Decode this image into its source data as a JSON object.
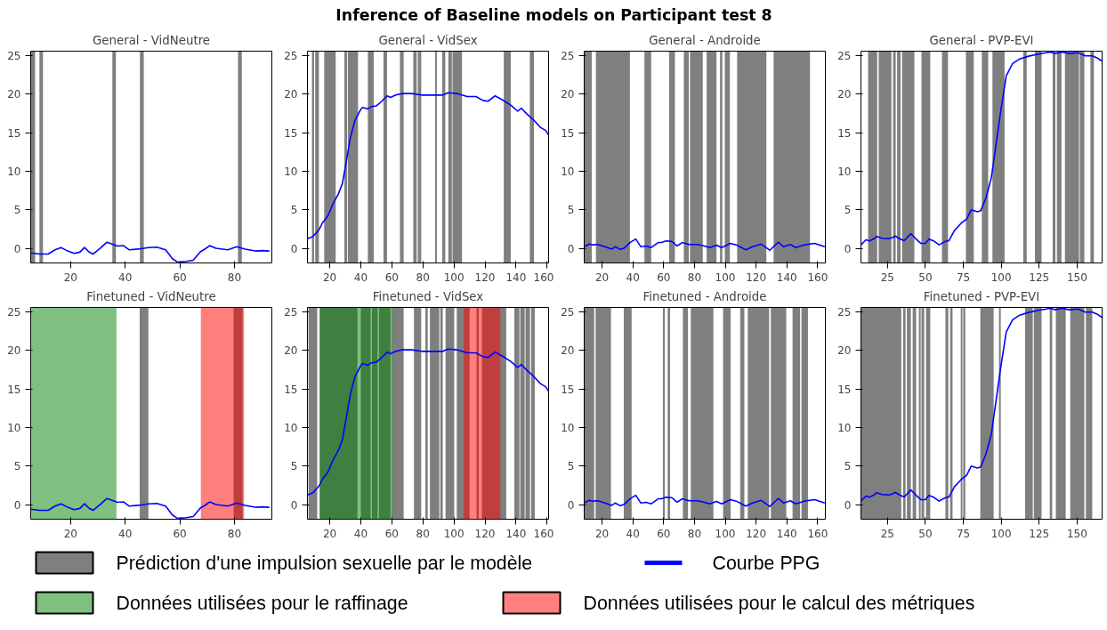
{
  "chart_data": [
    {
      "type": "line",
      "title": "General - VidNeutre",
      "annotations": [
        "Inference of Baseline models on Participant test 8"
      ],
      "xlim": [
        5.4,
        93.7
      ],
      "ylim": [
        -1.9,
        25.6
      ],
      "xticks": [
        20,
        40,
        60,
        80
      ],
      "yticks": [
        0,
        5,
        10,
        15,
        20,
        25
      ],
      "series": [
        {
          "color": "#0000ff",
          "x": [
            5.5,
            8.6,
            11.8,
            14.3,
            16.5,
            18.7,
            21.3,
            23.4,
            25.1,
            26.7,
            28.2,
            30.8,
            33.3,
            35.2,
            37.1,
            39.4,
            41.5,
            44.7,
            48.5,
            51.6,
            54.8,
            57.3,
            59.2,
            62.4,
            64.9,
            67.5,
            69.4,
            70.9,
            73.2,
            77.6,
            80.8,
            83.9,
            87.7,
            90.3,
            92.8
          ],
          "values": [
            -0.6,
            -0.75,
            -0.75,
            -0.2,
            0.1,
            -0.3,
            -0.65,
            -0.5,
            0.1,
            -0.45,
            -0.75,
            0,
            0.8,
            0.55,
            0.3,
            0.35,
            -0.2,
            -0.1,
            0.1,
            0.15,
            -0.2,
            -1.35,
            -1.8,
            -1.7,
            -1.55,
            -0.45,
            -0.05,
            0.35,
            0,
            -0.2,
            0.2,
            -0.1,
            -0.35,
            -0.3,
            -0.35
          ]
        }
      ],
      "bands": [
        {
          "axis": "x",
          "from": 5.4,
          "to": 7.0,
          "color": "#000000"
        },
        {
          "axis": "x",
          "from": 8.6,
          "to": 9.9,
          "color": "#000000"
        },
        {
          "axis": "x",
          "from": 35.3,
          "to": 36.6,
          "color": "#000000"
        },
        {
          "axis": "x",
          "from": 45.4,
          "to": 46.8,
          "color": "#000000"
        },
        {
          "axis": "x",
          "from": 81.3,
          "to": 82.7,
          "color": "#000000"
        }
      ]
    },
    {
      "type": "line",
      "title": "General - VidSex",
      "xlim": [
        5.6,
        161
      ],
      "ylim": [
        -1.9,
        25.6
      ],
      "xticks": [
        20,
        40,
        60,
        80,
        100,
        120,
        140,
        160
      ],
      "yticks": [
        0,
        5,
        10,
        15,
        20,
        25
      ],
      "series": [
        {
          "color": "#0000ff",
          "x": [
            5.6,
            9.2,
            13.0,
            15.3,
            18.7,
            22.0,
            25.4,
            28.1,
            31.0,
            33.3,
            36.2,
            40.0,
            41.1,
            44.5,
            46.7,
            50.1,
            53.5,
            56.9,
            59.1,
            62.5,
            67.0,
            72.6,
            79.3,
            86.1,
            92.8,
            96.2,
            101.8,
            108.5,
            114.2,
            118.7,
            122.0,
            126.5,
            131.0,
            136.6,
            141.1,
            143.4,
            146.7,
            151.2,
            155.7,
            159.1,
            161
          ],
          "values": [
            1.25,
            1.55,
            2.4,
            3.3,
            4.2,
            5.75,
            7.0,
            8.4,
            11.7,
            14.4,
            16.6,
            18.05,
            18.3,
            18.1,
            18.4,
            18.5,
            19.1,
            19.8,
            19.6,
            19.9,
            20.1,
            20.1,
            19.9,
            19.9,
            19.9,
            20.2,
            20.1,
            19.7,
            19.7,
            19.2,
            19.1,
            19.8,
            19.3,
            18.6,
            17.8,
            18.2,
            17.5,
            16.7,
            15.7,
            15.3,
            14.7
          ]
        }
      ],
      "bands": [
        {
          "axis": "x",
          "from": 8.5,
          "to": 9.9,
          "color": "#000000"
        },
        {
          "axis": "x",
          "from": 10.6,
          "to": 13.0,
          "color": "#000000"
        },
        {
          "axis": "x",
          "from": 16.4,
          "to": 23.8,
          "color": "#000000"
        },
        {
          "axis": "x",
          "from": 29.4,
          "to": 31.2,
          "color": "#000000"
        },
        {
          "axis": "x",
          "from": 31.7,
          "to": 38.2,
          "color": "#000000"
        },
        {
          "axis": "x",
          "from": 44.5,
          "to": 48.3,
          "color": "#000000"
        },
        {
          "axis": "x",
          "from": 54.6,
          "to": 56.9,
          "color": "#000000"
        },
        {
          "axis": "x",
          "from": 65.2,
          "to": 67.6,
          "color": "#000000"
        },
        {
          "axis": "x",
          "from": 73.8,
          "to": 76.0,
          "color": "#000000"
        },
        {
          "axis": "x",
          "from": 76.7,
          "to": 78.9,
          "color": "#000000"
        },
        {
          "axis": "x",
          "from": 87.9,
          "to": 89.0,
          "color": "#000000"
        },
        {
          "axis": "x",
          "from": 92.4,
          "to": 94.4,
          "color": "#000000"
        },
        {
          "axis": "x",
          "from": 96.4,
          "to": 98.7,
          "color": "#000000"
        },
        {
          "axis": "x",
          "from": 99.1,
          "to": 105.2,
          "color": "#000000"
        },
        {
          "axis": "x",
          "from": 132.1,
          "to": 136.6,
          "color": "#000000"
        },
        {
          "axis": "x",
          "from": 148.9,
          "to": 151.6,
          "color": "#000000"
        }
      ]
    },
    {
      "type": "line",
      "title": "General - Androide",
      "xlim": [
        8.4,
        165
      ],
      "ylim": [
        -1.9,
        25.6
      ],
      "xticks": [
        20,
        40,
        60,
        80,
        100,
        120,
        140,
        160
      ],
      "yticks": [
        0,
        5,
        10,
        15,
        20,
        25
      ],
      "series": [
        {
          "color": "#0000ff",
          "x": [
            8.4,
            11.7,
            13.9,
            17.3,
            21.8,
            26.3,
            28.5,
            31.8,
            34.1,
            38.5,
            41.9,
            45.2,
            48.6,
            51.9,
            56.4,
            58.6,
            61.5,
            65.3,
            68.7,
            72.0,
            76.5,
            82.1,
            86.5,
            89.9,
            94.3,
            97.7,
            103.3,
            107.7,
            113.3,
            117.8,
            123.3,
            128.9,
            134.5,
            137.9,
            142.3,
            145.7,
            151.3,
            158.0,
            164.6
          ],
          "values": [
            0.2,
            0.55,
            0.45,
            0.5,
            0.2,
            -0.1,
            0.2,
            -0.15,
            0,
            0.8,
            1.2,
            0.2,
            0.3,
            0.1,
            0.75,
            0.75,
            0.95,
            0.9,
            0.3,
            0.75,
            0.5,
            0.5,
            0.3,
            0.1,
            0.4,
            0.1,
            0.65,
            0.4,
            -0.2,
            0.2,
            0.55,
            -0.25,
            0.8,
            0.2,
            0.5,
            0.1,
            0.45,
            0.65,
            0.2
          ]
        }
      ],
      "bands": [
        {
          "axis": "x",
          "from": 8.4,
          "to": 13.3,
          "color": "#000000"
        },
        {
          "axis": "x",
          "from": 16.0,
          "to": 38.1,
          "color": "#000000"
        },
        {
          "axis": "x",
          "from": 47.5,
          "to": 51.9,
          "color": "#000000"
        },
        {
          "axis": "x",
          "from": 63.5,
          "to": 67.3,
          "color": "#000000"
        },
        {
          "axis": "x",
          "from": 73.1,
          "to": 76.3,
          "color": "#000000"
        },
        {
          "axis": "x",
          "from": 77.1,
          "to": 85.4,
          "color": "#000000"
        },
        {
          "axis": "x",
          "from": 87.9,
          "to": 94.3,
          "color": "#000000"
        },
        {
          "axis": "x",
          "from": 96.6,
          "to": 98.1,
          "color": "#000000"
        },
        {
          "axis": "x",
          "from": 99.7,
          "to": 103.0,
          "color": "#000000"
        },
        {
          "axis": "x",
          "from": 107.7,
          "to": 126.7,
          "color": "#000000"
        },
        {
          "axis": "x",
          "from": 131.4,
          "to": 155.0,
          "color": "#000000"
        }
      ]
    },
    {
      "type": "line",
      "title": "General - PVP-EVI",
      "xlim": [
        7.5,
        166.5
      ],
      "ylim": [
        -1.9,
        25.6
      ],
      "xticks": [
        25,
        50,
        75,
        100,
        125,
        150
      ],
      "yticks": [
        0,
        5,
        10,
        15,
        20,
        25
      ],
      "series": [
        {
          "color": "#0000ff",
          "x": [
            7.5,
            10.8,
            13.1,
            16.6,
            17.8,
            21.3,
            25.9,
            28.3,
            30.1,
            32.9,
            36.0,
            40.4,
            43.4,
            46.9,
            50.0,
            52.3,
            55.5,
            59.0,
            63.2,
            65.6,
            69.1,
            73.8,
            77.2,
            80.2,
            84.2,
            86.5,
            90.0,
            93.5,
            97.0,
            99.8,
            103.3,
            107.5,
            112.2,
            118.0,
            123.8,
            129.7,
            132.0,
            135.5,
            140.2,
            144.8,
            150.7,
            155.3,
            160.0,
            163.5,
            166.5
          ],
          "values": [
            0.45,
            1.1,
            0.95,
            1.3,
            1.55,
            1.3,
            1.25,
            1.4,
            1.6,
            1.25,
            1.0,
            1.9,
            1.3,
            0.65,
            0.65,
            1.2,
            0.95,
            0.45,
            0.9,
            1.0,
            2.3,
            3.3,
            3.8,
            5.0,
            4.75,
            4.9,
            6.6,
            9.2,
            14.1,
            18.0,
            22.4,
            24.0,
            24.6,
            24.95,
            25.2,
            25.4,
            25.5,
            25.3,
            25.5,
            25.3,
            25.4,
            25.0,
            25.0,
            24.7,
            24.3
          ]
        }
      ],
      "bands": [
        {
          "axis": "x",
          "from": 12.2,
          "to": 18.2,
          "color": "#000000"
        },
        {
          "axis": "x",
          "from": 19.2,
          "to": 27.6,
          "color": "#000000"
        },
        {
          "axis": "x",
          "from": 28.7,
          "to": 30.4,
          "color": "#000000"
        },
        {
          "axis": "x",
          "from": 31.3,
          "to": 33.6,
          "color": "#000000"
        },
        {
          "axis": "x",
          "from": 34.6,
          "to": 42.7,
          "color": "#000000"
        },
        {
          "axis": "x",
          "from": 47.4,
          "to": 53.2,
          "color": "#000000"
        },
        {
          "axis": "x",
          "from": 60.9,
          "to": 64.9,
          "color": "#000000"
        },
        {
          "axis": "x",
          "from": 76.7,
          "to": 81.9,
          "color": "#000000"
        },
        {
          "axis": "x",
          "from": 87.2,
          "to": 91.4,
          "color": "#000000"
        },
        {
          "axis": "x",
          "from": 94.2,
          "to": 102.2,
          "color": "#000000"
        },
        {
          "axis": "x",
          "from": 114.5,
          "to": 116.8,
          "color": "#000000"
        },
        {
          "axis": "x",
          "from": 122.2,
          "to": 126.6,
          "color": "#000000"
        },
        {
          "axis": "x",
          "from": 133.9,
          "to": 135.7,
          "color": "#000000"
        },
        {
          "axis": "x",
          "from": 136.7,
          "to": 139.7,
          "color": "#000000"
        },
        {
          "axis": "x",
          "from": 142.0,
          "to": 151.3,
          "color": "#000000"
        },
        {
          "axis": "x",
          "from": 151.8,
          "to": 154.8,
          "color": "#000000"
        },
        {
          "axis": "x",
          "from": 158.8,
          "to": 161.1,
          "color": "#000000"
        }
      ]
    },
    {
      "type": "line",
      "title": "Finetuned - VidNeutre",
      "legend": "bottom",
      "xlim": [
        5.4,
        93.7
      ],
      "ylim": [
        -1.9,
        25.6
      ],
      "xticks": [
        20,
        40,
        60,
        80
      ],
      "yticks": [
        0,
        5,
        10,
        15,
        20,
        25
      ],
      "series": [
        {
          "name": "Courbe PPG",
          "color": "#0000ff",
          "x": [
            5.5,
            8.6,
            11.8,
            14.3,
            16.5,
            18.7,
            21.3,
            23.4,
            25.1,
            26.7,
            28.2,
            30.8,
            33.3,
            35.2,
            37.1,
            39.4,
            41.5,
            44.7,
            48.5,
            51.6,
            54.8,
            57.3,
            59.2,
            62.4,
            64.9,
            67.5,
            69.4,
            70.9,
            73.2,
            77.6,
            80.8,
            83.9,
            87.7,
            90.3,
            92.8
          ],
          "values": [
            -0.6,
            -0.75,
            -0.75,
            -0.2,
            0.1,
            -0.3,
            -0.65,
            -0.5,
            0.1,
            -0.45,
            -0.75,
            0,
            0.8,
            0.55,
            0.3,
            0.35,
            -0.2,
            -0.1,
            0.1,
            0.15,
            -0.2,
            -1.35,
            -1.8,
            -1.7,
            -1.55,
            -0.45,
            -0.05,
            0.35,
            0,
            -0.2,
            0.2,
            -0.1,
            -0.35,
            -0.3,
            -0.35
          ]
        }
      ],
      "bands": [
        {
          "axis": "x",
          "from": 45.3,
          "to": 48.5,
          "color": "#000000",
          "label": "Prédiction d'une impulsion sexuelle par le modèle"
        },
        {
          "axis": "x",
          "from": 79.7,
          "to": 83.0,
          "color": "#000000"
        },
        {
          "axis": "x",
          "from": 5.4,
          "to": 36.8,
          "color": "#008000",
          "label": "Données utilisées pour le raffinage"
        },
        {
          "axis": "x",
          "from": 67.7,
          "to": 83.5,
          "color": "#ff0000",
          "label": "Données utilisées pour le calcul des métriques"
        }
      ]
    },
    {
      "type": "line",
      "title": "Finetuned - VidSex",
      "xlim": [
        5.6,
        161
      ],
      "ylim": [
        -1.9,
        25.6
      ],
      "xticks": [
        20,
        40,
        60,
        80,
        100,
        120,
        140,
        160
      ],
      "yticks": [
        0,
        5,
        10,
        15,
        20,
        25
      ],
      "series": [
        {
          "color": "#0000ff",
          "x": [
            5.6,
            9.2,
            13.0,
            15.3,
            18.7,
            22.0,
            25.4,
            28.1,
            31.0,
            33.3,
            36.2,
            40.0,
            41.1,
            44.5,
            46.7,
            50.1,
            53.5,
            56.9,
            59.1,
            62.5,
            67.0,
            72.6,
            79.3,
            86.1,
            92.8,
            96.2,
            101.8,
            108.5,
            114.2,
            118.7,
            122.0,
            126.5,
            131.0,
            136.6,
            141.1,
            143.4,
            146.7,
            151.2,
            155.7,
            159.1,
            161
          ],
          "values": [
            1.25,
            1.55,
            2.4,
            3.3,
            4.2,
            5.75,
            7.0,
            8.4,
            11.7,
            14.4,
            16.6,
            18.05,
            18.3,
            18.1,
            18.4,
            18.5,
            19.1,
            19.8,
            19.6,
            19.9,
            20.1,
            20.1,
            19.9,
            19.9,
            19.9,
            20.2,
            20.1,
            19.7,
            19.7,
            19.2,
            19.1,
            19.8,
            19.3,
            18.6,
            17.8,
            18.2,
            17.5,
            16.7,
            15.7,
            15.3,
            14.7
          ]
        }
      ],
      "bands": [
        {
          "axis": "x",
          "from": 6.3,
          "to": 11.9,
          "color": "#000000"
        },
        {
          "axis": "x",
          "from": 13.5,
          "to": 37.8,
          "color": "#000000"
        },
        {
          "axis": "x",
          "from": 40.0,
          "to": 46.3,
          "color": "#000000"
        },
        {
          "axis": "x",
          "from": 47.2,
          "to": 50.8,
          "color": "#000000"
        },
        {
          "axis": "x",
          "from": 51.7,
          "to": 59.1,
          "color": "#000000"
        },
        {
          "axis": "x",
          "from": 60.0,
          "to": 67.6,
          "color": "#000000"
        },
        {
          "axis": "x",
          "from": 74.2,
          "to": 78.9,
          "color": "#000000"
        },
        {
          "axis": "x",
          "from": 81.6,
          "to": 83.1,
          "color": "#000000"
        },
        {
          "axis": "x",
          "from": 84.5,
          "to": 90.6,
          "color": "#000000"
        },
        {
          "axis": "x",
          "from": 91.2,
          "to": 92.8,
          "color": "#000000"
        },
        {
          "axis": "x",
          "from": 94.6,
          "to": 100.2,
          "color": "#000000"
        },
        {
          "axis": "x",
          "from": 101.8,
          "to": 110.1,
          "color": "#000000"
        },
        {
          "axis": "x",
          "from": 114.6,
          "to": 116.0,
          "color": "#000000"
        },
        {
          "axis": "x",
          "from": 118.0,
          "to": 133.7,
          "color": "#000000"
        },
        {
          "axis": "x",
          "from": 138.9,
          "to": 142.2,
          "color": "#000000"
        },
        {
          "axis": "x",
          "from": 142.7,
          "to": 145.6,
          "color": "#000000"
        },
        {
          "axis": "x",
          "from": 146.1,
          "to": 149.0,
          "color": "#000000"
        },
        {
          "axis": "x",
          "from": 149.7,
          "to": 152.1,
          "color": "#000000"
        },
        {
          "axis": "x",
          "from": 13.5,
          "to": 60.4,
          "color": "#008000"
        },
        {
          "axis": "x",
          "from": 106.3,
          "to": 129.9,
          "color": "#ff0000"
        }
      ]
    },
    {
      "type": "line",
      "title": "Finetuned - Androide",
      "xlim": [
        8.4,
        165
      ],
      "ylim": [
        -1.9,
        25.6
      ],
      "xticks": [
        20,
        40,
        60,
        80,
        100,
        120,
        140,
        160
      ],
      "yticks": [
        0,
        5,
        10,
        15,
        20,
        25
      ],
      "series": [
        {
          "color": "#0000ff",
          "x": [
            8.4,
            11.7,
            13.9,
            17.3,
            21.8,
            26.3,
            28.5,
            31.8,
            34.1,
            38.5,
            41.9,
            45.2,
            48.6,
            51.9,
            56.4,
            58.6,
            61.5,
            65.3,
            68.7,
            72.0,
            76.5,
            82.1,
            86.5,
            89.9,
            94.3,
            97.7,
            103.3,
            107.7,
            113.3,
            117.8,
            123.3,
            128.9,
            134.5,
            137.9,
            142.3,
            145.7,
            151.3,
            158.0,
            164.6
          ],
          "values": [
            0.2,
            0.55,
            0.45,
            0.5,
            0.2,
            -0.1,
            0.2,
            -0.15,
            0,
            0.8,
            1.2,
            0.2,
            0.3,
            0.1,
            0.75,
            0.75,
            0.95,
            0.9,
            0.3,
            0.75,
            0.5,
            0.5,
            0.3,
            0.1,
            0.4,
            0.1,
            0.65,
            0.4,
            -0.2,
            0.2,
            0.55,
            -0.25,
            0.8,
            0.2,
            0.5,
            0.1,
            0.45,
            0.65,
            0.2
          ]
        }
      ],
      "bands": [
        {
          "axis": "x",
          "from": 8.4,
          "to": 14.9,
          "color": "#000000"
        },
        {
          "axis": "x",
          "from": 15.8,
          "to": 25.8,
          "color": "#000000"
        },
        {
          "axis": "x",
          "from": 34.1,
          "to": 39.2,
          "color": "#000000"
        },
        {
          "axis": "x",
          "from": 59.5,
          "to": 60.8,
          "color": "#000000"
        },
        {
          "axis": "x",
          "from": 62.6,
          "to": 64.2,
          "color": "#000000"
        },
        {
          "axis": "x",
          "from": 72.5,
          "to": 75.8,
          "color": "#000000"
        },
        {
          "axis": "x",
          "from": 77.6,
          "to": 92.3,
          "color": "#000000"
        },
        {
          "axis": "x",
          "from": 98.6,
          "to": 103.5,
          "color": "#000000"
        },
        {
          "axis": "x",
          "from": 109.7,
          "to": 112.4,
          "color": "#000000"
        },
        {
          "axis": "x",
          "from": 114.6,
          "to": 128.5,
          "color": "#000000"
        },
        {
          "axis": "x",
          "from": 129.6,
          "to": 139.6,
          "color": "#000000"
        },
        {
          "axis": "x",
          "from": 143.7,
          "to": 148.6,
          "color": "#000000"
        },
        {
          "axis": "x",
          "from": 149.5,
          "to": 153.7,
          "color": "#000000"
        }
      ]
    },
    {
      "type": "line",
      "title": "Finetuned - PVP-EVI",
      "xlim": [
        7.5,
        166.5
      ],
      "ylim": [
        -1.9,
        25.6
      ],
      "xticks": [
        25,
        50,
        75,
        100,
        125,
        150
      ],
      "yticks": [
        0,
        5,
        10,
        15,
        20,
        25
      ],
      "series": [
        {
          "color": "#0000ff",
          "x": [
            7.5,
            10.8,
            13.1,
            16.6,
            17.8,
            21.3,
            25.9,
            28.3,
            30.1,
            32.9,
            36.0,
            40.4,
            43.4,
            46.9,
            50.0,
            52.3,
            55.5,
            59.0,
            63.2,
            65.6,
            69.1,
            73.8,
            77.2,
            80.2,
            84.2,
            86.5,
            90.0,
            93.5,
            97.0,
            99.8,
            103.3,
            107.5,
            112.2,
            118.0,
            123.8,
            129.7,
            132.0,
            135.5,
            140.2,
            144.8,
            150.7,
            155.3,
            160.0,
            163.5,
            166.5
          ],
          "values": [
            0.45,
            1.1,
            0.95,
            1.3,
            1.55,
            1.3,
            1.25,
            1.4,
            1.6,
            1.25,
            1.0,
            1.9,
            1.3,
            0.65,
            0.65,
            1.2,
            0.95,
            0.45,
            0.9,
            1.0,
            2.3,
            3.3,
            3.8,
            5.0,
            4.75,
            4.9,
            6.6,
            9.2,
            14.1,
            18.0,
            22.4,
            24.0,
            24.6,
            24.95,
            25.2,
            25.4,
            25.5,
            25.3,
            25.5,
            25.3,
            25.4,
            25.0,
            25.0,
            24.7,
            24.3
          ]
        }
      ],
      "bands": [
        {
          "axis": "x",
          "from": 7.5,
          "to": 34.1,
          "color": "#000000"
        },
        {
          "axis": "x",
          "from": 35.3,
          "to": 36.9,
          "color": "#000000"
        },
        {
          "axis": "x",
          "from": 37.8,
          "to": 40.4,
          "color": "#000000"
        },
        {
          "axis": "x",
          "from": 41.6,
          "to": 43.9,
          "color": "#000000"
        },
        {
          "axis": "x",
          "from": 45.7,
          "to": 46.9,
          "color": "#000000"
        },
        {
          "axis": "x",
          "from": 47.4,
          "to": 49.2,
          "color": "#000000"
        },
        {
          "axis": "x",
          "from": 50.4,
          "to": 53.2,
          "color": "#000000"
        },
        {
          "axis": "x",
          "from": 63.2,
          "to": 65.1,
          "color": "#000000"
        },
        {
          "axis": "x",
          "from": 66.3,
          "to": 67.9,
          "color": "#000000"
        },
        {
          "axis": "x",
          "from": 73.3,
          "to": 74.4,
          "color": "#000000"
        },
        {
          "axis": "x",
          "from": 74.9,
          "to": 76.3,
          "color": "#000000"
        },
        {
          "axis": "x",
          "from": 86.2,
          "to": 95.0,
          "color": "#000000"
        },
        {
          "axis": "x",
          "from": 98.5,
          "to": 99.7,
          "color": "#000000"
        },
        {
          "axis": "x",
          "from": 115.7,
          "to": 120.8,
          "color": "#000000"
        },
        {
          "axis": "x",
          "from": 121.5,
          "to": 126.6,
          "color": "#000000"
        },
        {
          "axis": "x",
          "from": 132.0,
          "to": 133.6,
          "color": "#000000"
        },
        {
          "axis": "x",
          "from": 136.0,
          "to": 142.5,
          "color": "#000000"
        },
        {
          "axis": "x",
          "from": 145.5,
          "to": 154.8,
          "color": "#000000"
        },
        {
          "axis": "x",
          "from": 155.8,
          "to": 160.0,
          "color": "#000000"
        }
      ]
    }
  ]
}
